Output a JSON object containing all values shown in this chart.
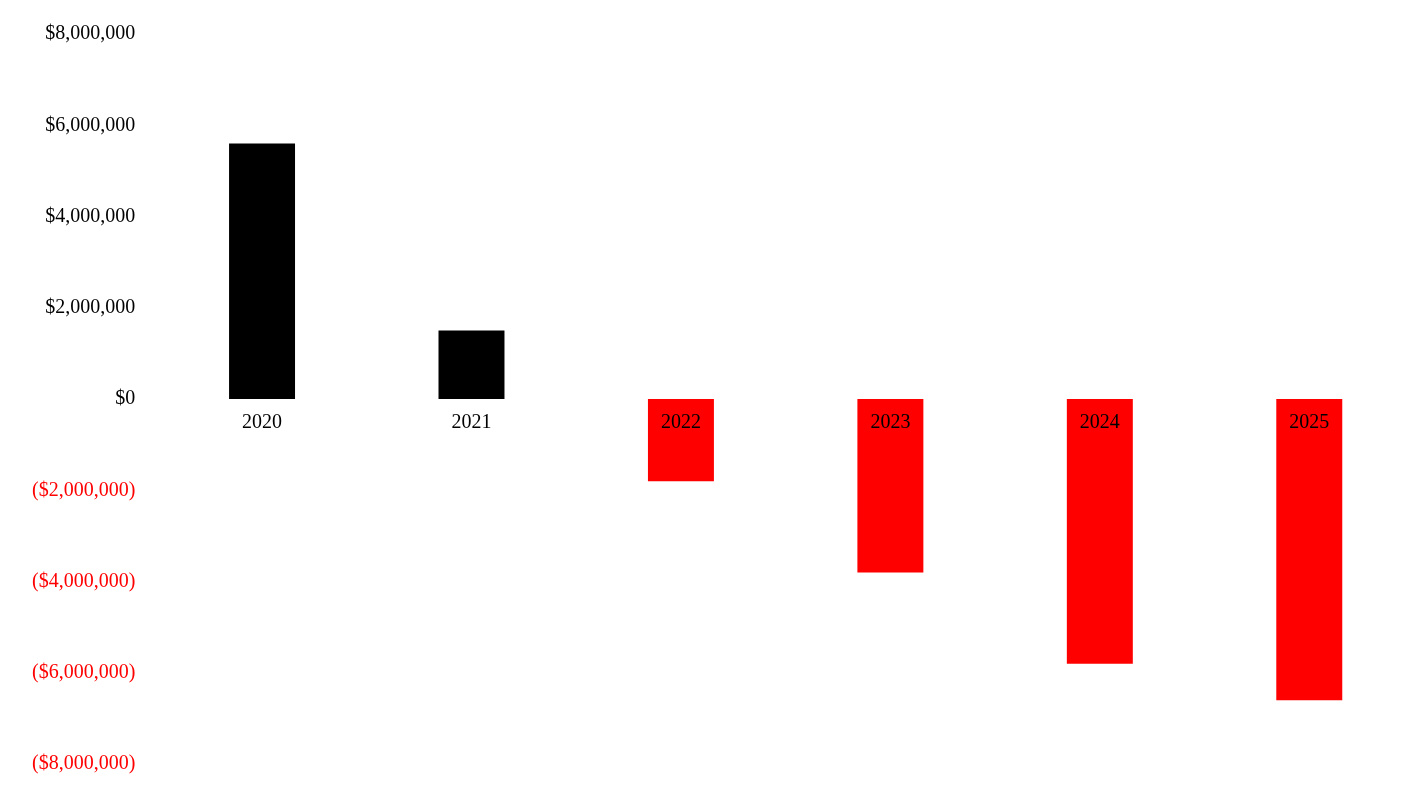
{
  "chart_data": {
    "type": "bar",
    "categories": [
      "2020",
      "2021",
      "2022",
      "2023",
      "2024",
      "2025"
    ],
    "values": [
      5600000,
      1500000,
      -1800000,
      -3800000,
      -5800000,
      -6600000
    ],
    "colors": [
      "#000000",
      "#000000",
      "#ff0000",
      "#ff0000",
      "#ff0000",
      "#ff0000"
    ],
    "ylim": [
      -8000000,
      8000000
    ],
    "yticks": [
      {
        "value": -8000000,
        "label": "($8,000,000)"
      },
      {
        "value": -6000000,
        "label": "($6,000,000)"
      },
      {
        "value": -4000000,
        "label": "($4,000,000)"
      },
      {
        "value": -2000000,
        "label": "($2,000,000)"
      },
      {
        "value": 0,
        "label": "$0"
      },
      {
        "value": 2000000,
        "label": "$2,000,000"
      },
      {
        "value": 4000000,
        "label": "$4,000,000"
      },
      {
        "value": 6000000,
        "label": "$6,000,000"
      },
      {
        "value": 8000000,
        "label": "$8,000,000"
      }
    ],
    "grid": false,
    "legend": false
  }
}
